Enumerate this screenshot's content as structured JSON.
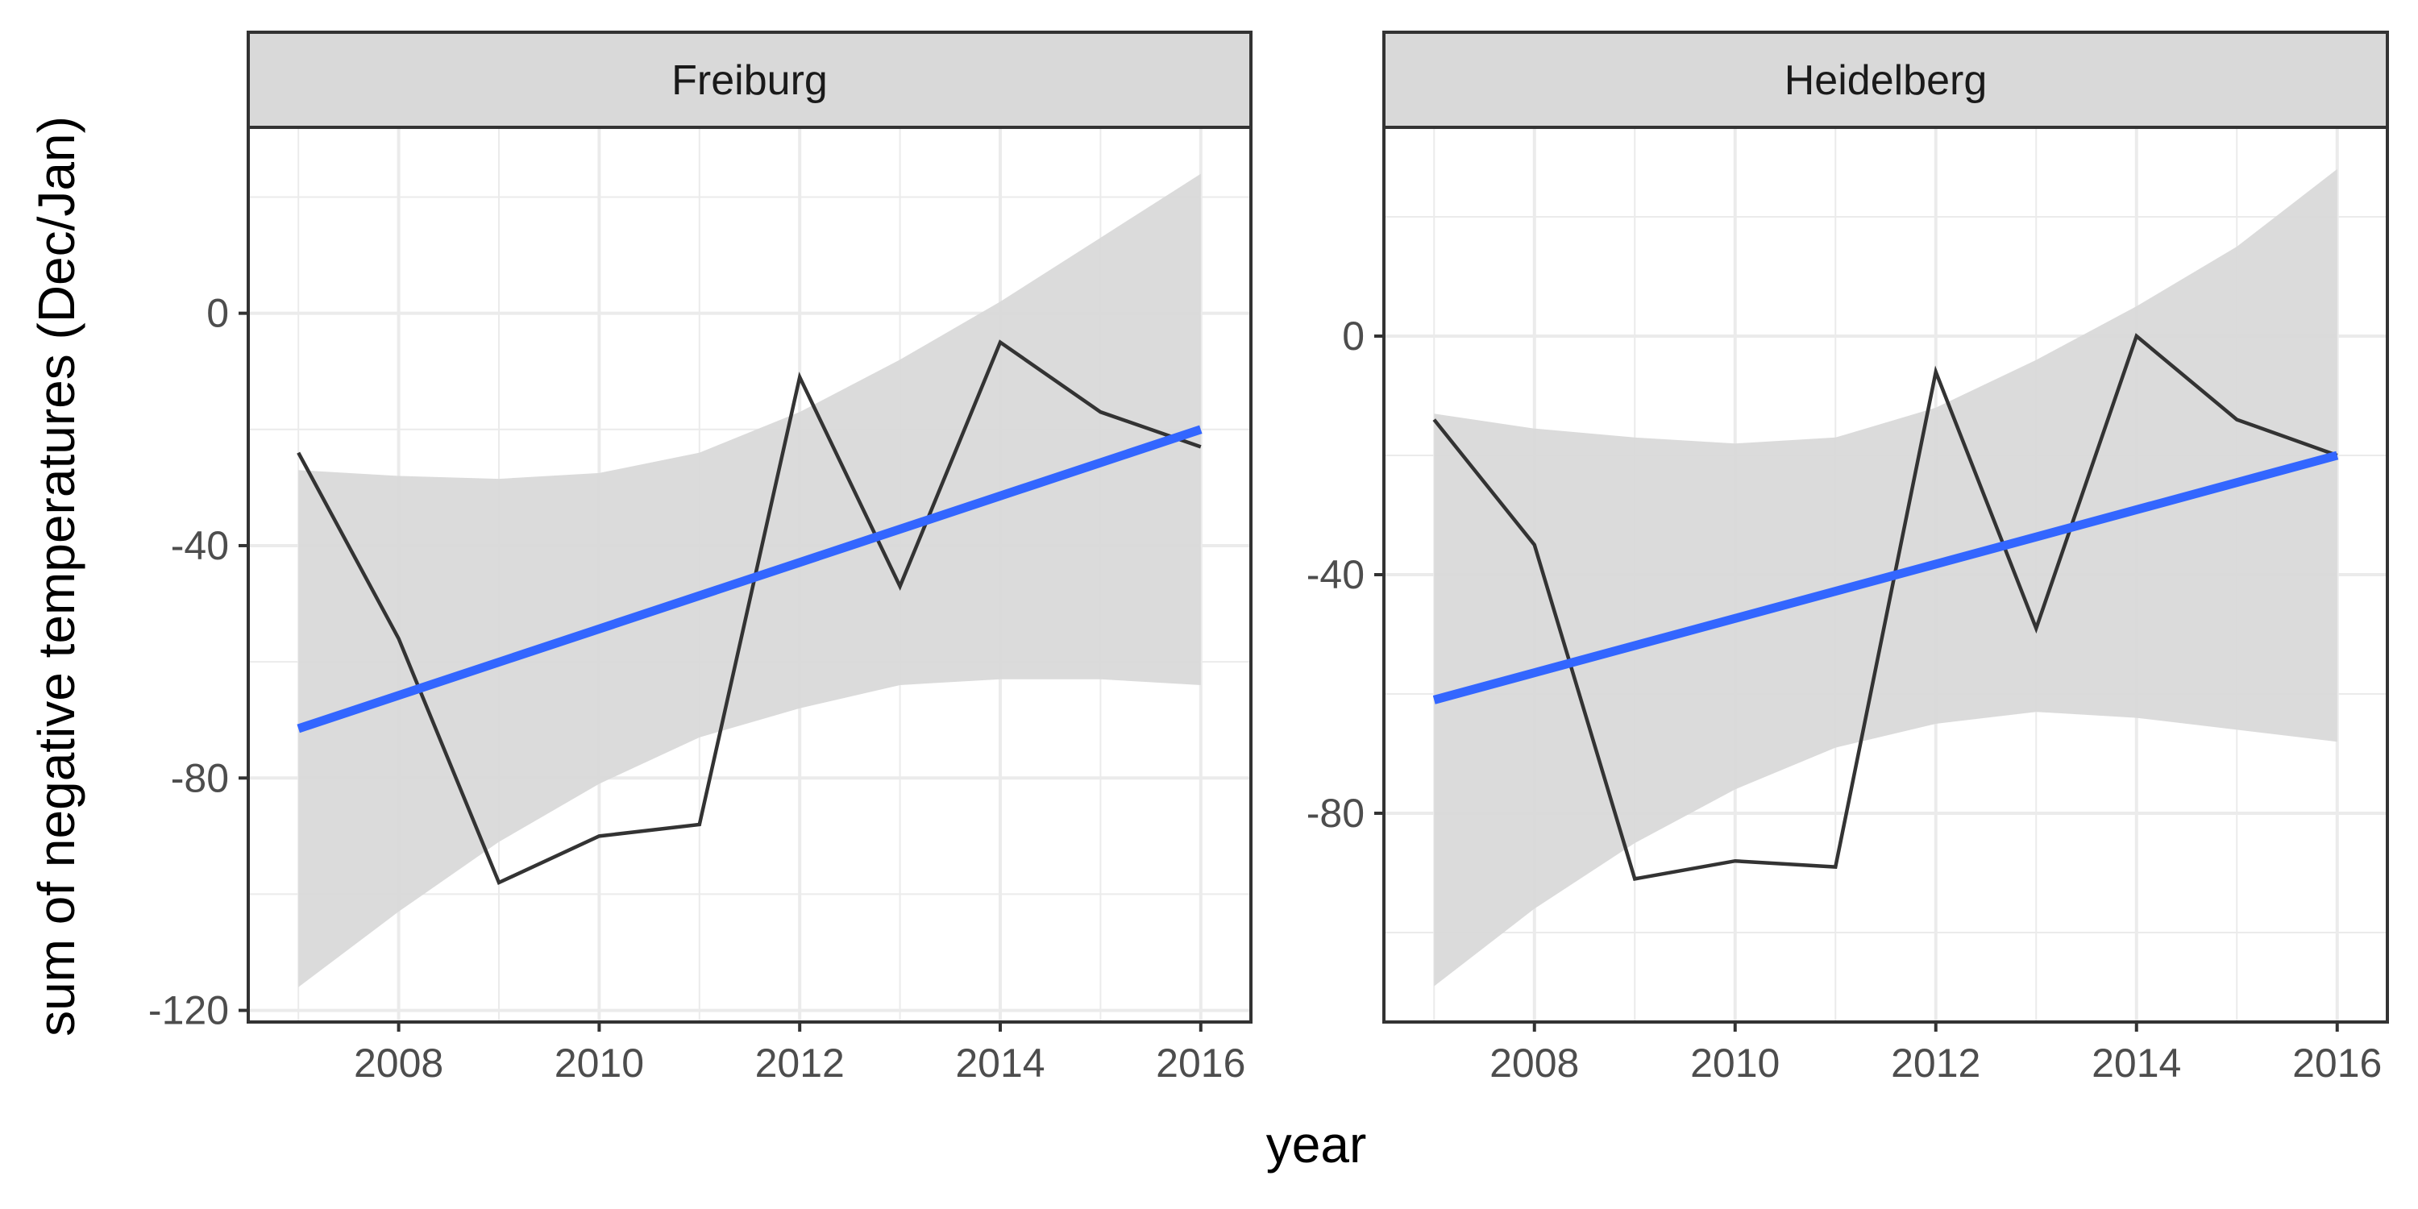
{
  "chart_data": {
    "type": "line",
    "xlabel": "year",
    "ylabel": "sum of negative temperatures (Dec/Jan)",
    "colors": {
      "observed": "#333333",
      "trend": "#3366FF",
      "confidence_band": "#d9d9d9",
      "strip": "#d9d9d9",
      "grid_major": "#ebebeb"
    },
    "panels": [
      {
        "strip": "Freiburg",
        "x": [
          2007,
          2008,
          2009,
          2010,
          2011,
          2012,
          2013,
          2014,
          2015,
          2016
        ],
        "observed": [
          -24,
          -56,
          -98,
          -90,
          -88,
          -11,
          -47,
          -5,
          -17,
          -23
        ],
        "trend": {
          "start": [
            2007,
            -71.5
          ],
          "end": [
            2016,
            -20
          ]
        },
        "ci_band": {
          "x": [
            2007,
            2008,
            2009,
            2010,
            2011,
            2012,
            2013,
            2014,
            2015,
            2016
          ],
          "upper": [
            -27,
            -28,
            -28.5,
            -27.5,
            -24,
            -17,
            -8,
            2,
            13,
            24
          ],
          "lower": [
            -116,
            -103,
            -91,
            -81,
            -73,
            -68,
            -64,
            -63,
            -63,
            -64
          ]
        },
        "xlim": [
          2006.5,
          2016.5
        ],
        "ylim": [
          -122,
          32
        ],
        "xticks": [
          2008,
          2010,
          2012,
          2014,
          2016
        ],
        "yticks": [
          0,
          -40,
          -80,
          -120
        ],
        "ytick_labels": [
          "0",
          "-40",
          "-80",
          "-120"
        ]
      },
      {
        "strip": "Heidelberg",
        "x": [
          2007,
          2008,
          2009,
          2010,
          2011,
          2012,
          2013,
          2014,
          2015,
          2016
        ],
        "observed": [
          -14,
          -35,
          -91,
          -88,
          -89,
          -6,
          -49,
          0,
          -14,
          -20
        ],
        "trend": {
          "start": [
            2007,
            -61
          ],
          "end": [
            2016,
            -20
          ]
        },
        "ci_band": {
          "x": [
            2007,
            2008,
            2009,
            2010,
            2011,
            2012,
            2013,
            2014,
            2015,
            2016
          ],
          "upper": [
            -13,
            -15.5,
            -17,
            -18,
            -17,
            -12,
            -4,
            5,
            15,
            28
          ],
          "lower": [
            -109,
            -96,
            -85,
            -76,
            -69,
            -65,
            -63,
            -64,
            -66,
            -68
          ]
        },
        "xlim": [
          2006.5,
          2016.5
        ],
        "ylim": [
          -115,
          35
        ],
        "xticks": [
          2008,
          2010,
          2012,
          2014,
          2016
        ],
        "yticks": [
          0,
          -40,
          -80
        ],
        "ytick_labels": [
          "0",
          "-40",
          "-80"
        ]
      }
    ]
  }
}
